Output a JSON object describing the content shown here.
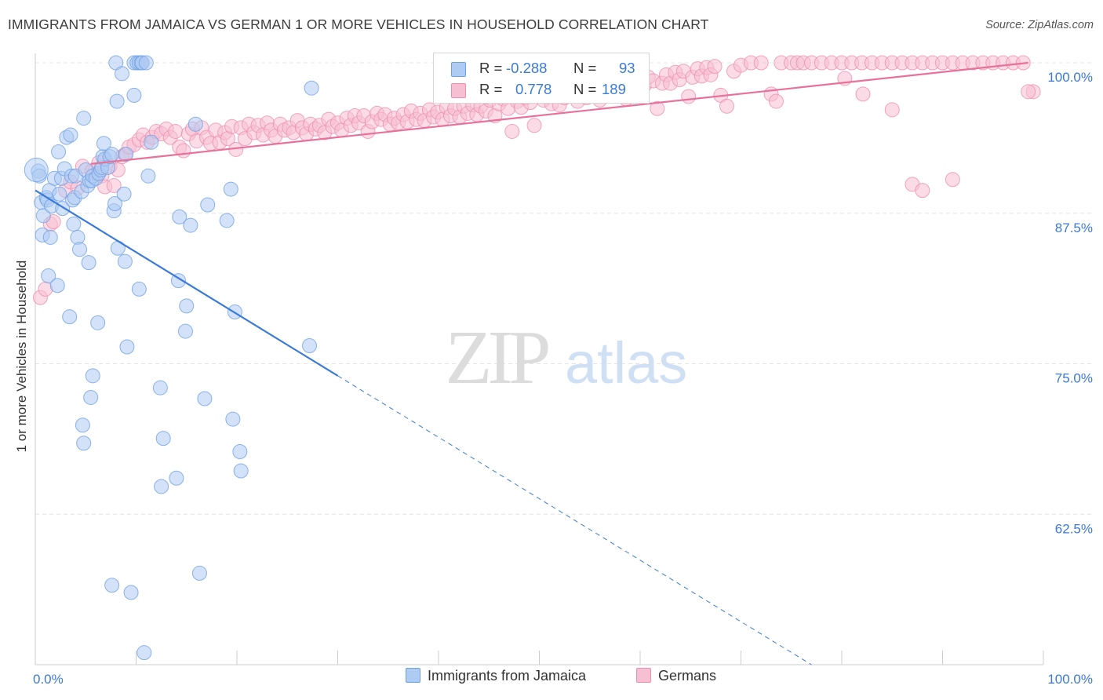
{
  "title": "IMMIGRANTS FROM JAMAICA VS GERMAN 1 OR MORE VEHICLES IN HOUSEHOLD CORRELATION CHART",
  "source": "Source: ZipAtlas.com",
  "watermark": {
    "zip": "ZIP",
    "atlas": "atlas"
  },
  "legend": {
    "rows": [
      {
        "r_label": "R =",
        "r_value": "-0.288",
        "n_label": "N =",
        "n_value": "93",
        "color": "#6fa1e6",
        "fill": "#aecbf3"
      },
      {
        "r_label": "R =",
        "r_value": "0.778",
        "n_label": "N =",
        "n_value": "189",
        "color": "#ee8eaf",
        "fill": "#f7bfd2"
      }
    ]
  },
  "bottom_legend": [
    "Immigrants from Jamaica",
    "Germans"
  ],
  "chart_data": {
    "type": "scatter",
    "title": "IMMIGRANTS FROM JAMAICA VS GERMAN 1 OR MORE VEHICLES IN HOUSEHOLD CORRELATION CHART",
    "xlabel": "",
    "ylabel": "1 or more Vehicles in Household",
    "xlim": [
      0,
      100
    ],
    "ylim": [
      50,
      100
    ],
    "x_tick_labels": [
      "0.0%",
      "100.0%"
    ],
    "y_tick_labels": [
      "100.0%",
      "87.5%",
      "75.0%",
      "62.5%"
    ],
    "y_ticks": [
      100,
      87.5,
      75,
      62.5
    ],
    "grid": true,
    "legend_position": "top-center",
    "series": [
      {
        "name": "Immigrants from Jamaica",
        "color": "#6fa1e6",
        "fill": "#aecbf3",
        "trend": {
          "x": [
            0,
            30
          ],
          "y": [
            89.4,
            74.0
          ],
          "dashed_to": {
            "x": 77,
            "y": 50.0
          }
        },
        "points": [
          [
            0.3,
            91.0
          ],
          [
            0.4,
            90.6
          ],
          [
            0.6,
            88.4
          ],
          [
            0.7,
            85.7
          ],
          [
            0.8,
            87.3
          ],
          [
            1.1,
            88.8
          ],
          [
            1.2,
            88.6
          ],
          [
            1.3,
            82.3
          ],
          [
            1.4,
            89.4
          ],
          [
            1.5,
            85.5
          ],
          [
            1.6,
            88.1
          ],
          [
            1.9,
            90.4
          ],
          [
            2.2,
            81.5
          ],
          [
            2.3,
            92.6
          ],
          [
            2.4,
            89.1
          ],
          [
            2.6,
            90.4
          ],
          [
            2.7,
            87.9
          ],
          [
            2.9,
            91.2
          ],
          [
            3.1,
            93.8
          ],
          [
            3.4,
            78.9
          ],
          [
            3.5,
            94.0
          ],
          [
            3.6,
            90.6
          ],
          [
            3.7,
            88.6
          ],
          [
            3.8,
            86.6
          ],
          [
            3.9,
            88.8
          ],
          [
            4.0,
            90.6
          ],
          [
            4.2,
            85.5
          ],
          [
            4.4,
            84.5
          ],
          [
            4.6,
            89.3
          ],
          [
            4.8,
            95.4
          ],
          [
            4.7,
            69.9
          ],
          [
            4.8,
            68.4
          ],
          [
            5.0,
            91.1
          ],
          [
            5.2,
            89.8
          ],
          [
            5.3,
            83.4
          ],
          [
            5.4,
            90.2
          ],
          [
            5.6,
            90.2
          ],
          [
            5.7,
            90.6
          ],
          [
            5.5,
            72.2
          ],
          [
            5.7,
            74.0
          ],
          [
            6.0,
            90.4
          ],
          [
            6.2,
            78.4
          ],
          [
            6.3,
            90.8
          ],
          [
            6.5,
            91.1
          ],
          [
            6.6,
            91.3
          ],
          [
            6.7,
            92.2
          ],
          [
            6.8,
            93.3
          ],
          [
            6.9,
            92.0
          ],
          [
            7.2,
            91.3
          ],
          [
            7.4,
            92.2
          ],
          [
            7.6,
            92.4
          ],
          [
            7.6,
            56.6
          ],
          [
            7.8,
            87.7
          ],
          [
            7.9,
            88.3
          ],
          [
            8.0,
            100.0
          ],
          [
            8.1,
            96.8
          ],
          [
            8.2,
            84.6
          ],
          [
            8.6,
            99.1
          ],
          [
            8.8,
            89.1
          ],
          [
            8.9,
            83.5
          ],
          [
            9.0,
            92.4
          ],
          [
            9.1,
            76.4
          ],
          [
            9.5,
            56.0
          ],
          [
            9.8,
            100.0
          ],
          [
            9.8,
            97.3
          ],
          [
            10.1,
            100.0
          ],
          [
            10.3,
            100.0
          ],
          [
            10.3,
            81.2
          ],
          [
            10.5,
            100.0
          ],
          [
            10.6,
            100.0
          ],
          [
            10.8,
            51.0
          ],
          [
            11.0,
            100.0
          ],
          [
            11.2,
            90.6
          ],
          [
            11.5,
            93.4
          ],
          [
            12.4,
            73.0
          ],
          [
            12.5,
            64.8
          ],
          [
            12.7,
            68.8
          ],
          [
            14.0,
            65.5
          ],
          [
            14.2,
            81.9
          ],
          [
            14.3,
            87.2
          ],
          [
            14.9,
            77.7
          ],
          [
            15.0,
            79.8
          ],
          [
            15.4,
            86.5
          ],
          [
            15.9,
            94.9
          ],
          [
            16.3,
            57.6
          ],
          [
            16.8,
            72.1
          ],
          [
            17.1,
            88.2
          ],
          [
            19.0,
            86.9
          ],
          [
            19.4,
            89.5
          ],
          [
            19.6,
            70.4
          ],
          [
            19.8,
            79.3
          ],
          [
            20.3,
            67.7
          ],
          [
            20.4,
            66.1
          ],
          [
            27.2,
            76.5
          ],
          [
            27.4,
            97.9
          ]
        ]
      },
      {
        "name": "Germans",
        "color": "#ee8eaf",
        "fill": "#f7bfd2",
        "trend": {
          "x": [
            5.5,
            98.5
          ],
          "y": [
            91.6,
            100.0
          ]
        },
        "points": [
          [
            0.5,
            80.5
          ],
          [
            1.0,
            81.2
          ],
          [
            1.5,
            86.6
          ],
          [
            1.8,
            86.8
          ],
          [
            3.0,
            89.4
          ],
          [
            3.5,
            90.1
          ],
          [
            4.2,
            89.6
          ],
          [
            4.7,
            91.4
          ],
          [
            5.6,
            91.0
          ],
          [
            6.1,
            90.8
          ],
          [
            6.3,
            91.7
          ],
          [
            6.6,
            90.6
          ],
          [
            6.9,
            89.7
          ],
          [
            7.4,
            91.4
          ],
          [
            7.8,
            89.8
          ],
          [
            8.2,
            91.1
          ],
          [
            8.6,
            92.2
          ],
          [
            8.9,
            92.4
          ],
          [
            9.3,
            93.0
          ],
          [
            9.8,
            93.2
          ],
          [
            10.3,
            93.6
          ],
          [
            10.7,
            94.0
          ],
          [
            11.1,
            93.4
          ],
          [
            11.6,
            93.8
          ],
          [
            12.0,
            94.3
          ],
          [
            12.5,
            94.1
          ],
          [
            13.0,
            94.5
          ],
          [
            13.4,
            93.8
          ],
          [
            13.9,
            94.3
          ],
          [
            14.3,
            93.0
          ],
          [
            14.7,
            92.7
          ],
          [
            15.2,
            94.1
          ],
          [
            15.6,
            94.5
          ],
          [
            16.0,
            93.5
          ],
          [
            16.5,
            94.6
          ],
          [
            17.0,
            93.8
          ],
          [
            17.4,
            93.3
          ],
          [
            17.9,
            94.4
          ],
          [
            18.3,
            93.4
          ],
          [
            18.8,
            94.2
          ],
          [
            19.1,
            93.7
          ],
          [
            19.5,
            94.7
          ],
          [
            19.9,
            92.8
          ],
          [
            20.4,
            94.6
          ],
          [
            20.8,
            93.7
          ],
          [
            21.2,
            94.9
          ],
          [
            21.7,
            94.2
          ],
          [
            22.1,
            94.8
          ],
          [
            22.6,
            94.0
          ],
          [
            23.0,
            95.0
          ],
          [
            23.4,
            94.4
          ],
          [
            23.8,
            93.9
          ],
          [
            24.3,
            94.9
          ],
          [
            24.7,
            94.4
          ],
          [
            25.2,
            94.6
          ],
          [
            25.6,
            94.2
          ],
          [
            26.0,
            95.2
          ],
          [
            26.5,
            94.6
          ],
          [
            26.9,
            94.1
          ],
          [
            27.3,
            94.9
          ],
          [
            27.8,
            94.5
          ],
          [
            28.2,
            94.8
          ],
          [
            28.7,
            94.2
          ],
          [
            29.1,
            95.3
          ],
          [
            29.5,
            94.7
          ],
          [
            30.0,
            95.0
          ],
          [
            30.4,
            94.4
          ],
          [
            30.9,
            95.4
          ],
          [
            31.3,
            94.8
          ],
          [
            31.7,
            95.6
          ],
          [
            32.1,
            95.0
          ],
          [
            32.6,
            95.6
          ],
          [
            33.0,
            94.3
          ],
          [
            33.4,
            95.1
          ],
          [
            33.9,
            95.8
          ],
          [
            34.3,
            95.3
          ],
          [
            34.7,
            95.7
          ],
          [
            35.2,
            94.9
          ],
          [
            35.6,
            95.4
          ],
          [
            36.0,
            95.0
          ],
          [
            36.5,
            95.7
          ],
          [
            36.9,
            95.1
          ],
          [
            37.3,
            96.0
          ],
          [
            37.8,
            95.3
          ],
          [
            38.2,
            95.8
          ],
          [
            38.6,
            95.2
          ],
          [
            39.1,
            96.1
          ],
          [
            39.5,
            95.5
          ],
          [
            39.9,
            95.9
          ],
          [
            40.4,
            95.3
          ],
          [
            40.8,
            96.3
          ],
          [
            41.2,
            95.6
          ],
          [
            41.6,
            96.2
          ],
          [
            42.1,
            95.5
          ],
          [
            42.5,
            96.4
          ],
          [
            42.9,
            95.8
          ],
          [
            43.4,
            96.5
          ],
          [
            43.8,
            95.7
          ],
          [
            44.2,
            96.4
          ],
          [
            44.7,
            96.0
          ],
          [
            45.1,
            96.9
          ],
          [
            45.6,
            95.6
          ],
          [
            46.0,
            96.6
          ],
          [
            46.4,
            97.0
          ],
          [
            46.9,
            96.2
          ],
          [
            47.3,
            94.3
          ],
          [
            47.8,
            96.8
          ],
          [
            48.2,
            96.3
          ],
          [
            48.6,
            97.1
          ],
          [
            49.1,
            96.7
          ],
          [
            49.5,
            94.8
          ],
          [
            49.9,
            97.4
          ],
          [
            50.4,
            96.9
          ],
          [
            50.8,
            97.2
          ],
          [
            51.2,
            96.6
          ],
          [
            51.6,
            97.6
          ],
          [
            52.0,
            96.5
          ],
          [
            52.5,
            97.1
          ],
          [
            53.0,
            97.8
          ],
          [
            53.4,
            97.3
          ],
          [
            53.8,
            96.8
          ],
          [
            54.3,
            97.6
          ],
          [
            54.7,
            97.1
          ],
          [
            55.2,
            97.9
          ],
          [
            55.6,
            97.4
          ],
          [
            56.0,
            96.9
          ],
          [
            56.4,
            97.8
          ],
          [
            56.9,
            97.3
          ],
          [
            57.3,
            98.1
          ],
          [
            57.8,
            97.7
          ],
          [
            58.2,
            98.3
          ],
          [
            58.6,
            97.0
          ],
          [
            59.1,
            98.5
          ],
          [
            59.5,
            97.8
          ],
          [
            60.0,
            98.7
          ],
          [
            60.4,
            98.1
          ],
          [
            60.8,
            98.8
          ],
          [
            61.3,
            98.5
          ],
          [
            61.7,
            96.2
          ],
          [
            62.2,
            98.3
          ],
          [
            62.6,
            99.0
          ],
          [
            63.0,
            98.3
          ],
          [
            63.5,
            99.2
          ],
          [
            63.9,
            98.6
          ],
          [
            64.3,
            99.3
          ],
          [
            64.8,
            97.2
          ],
          [
            65.2,
            98.8
          ],
          [
            65.7,
            99.5
          ],
          [
            66.1,
            98.9
          ],
          [
            66.6,
            99.6
          ],
          [
            67.0,
            99.0
          ],
          [
            67.4,
            99.7
          ],
          [
            68.0,
            97.3
          ],
          [
            68.6,
            96.4
          ],
          [
            69.3,
            99.3
          ],
          [
            70.0,
            99.8
          ],
          [
            71.0,
            100.0
          ],
          [
            72.0,
            100.0
          ],
          [
            73.0,
            97.4
          ],
          [
            73.5,
            96.8
          ],
          [
            74.0,
            100.0
          ],
          [
            75.0,
            100.0
          ],
          [
            75.6,
            100.0
          ],
          [
            76.2,
            100.0
          ],
          [
            77.0,
            100.0
          ],
          [
            78.0,
            100.0
          ],
          [
            79.0,
            100.0
          ],
          [
            80.0,
            100.0
          ],
          [
            81.0,
            100.0
          ],
          [
            82.0,
            100.0
          ],
          [
            83.0,
            100.0
          ],
          [
            84.0,
            100.0
          ],
          [
            85.0,
            100.0
          ],
          [
            86.0,
            100.0
          ],
          [
            87.0,
            100.0
          ],
          [
            88.0,
            100.0
          ],
          [
            89.0,
            100.0
          ],
          [
            90.0,
            100.0
          ],
          [
            91.0,
            100.0
          ],
          [
            92.0,
            100.0
          ],
          [
            93.0,
            100.0
          ],
          [
            94.0,
            100.0
          ],
          [
            95.0,
            100.0
          ],
          [
            96.0,
            100.0
          ],
          [
            97.0,
            100.0
          ],
          [
            98.0,
            100.0
          ],
          [
            99.0,
            97.6
          ],
          [
            98.5,
            97.6
          ],
          [
            80.3,
            98.7
          ],
          [
            82.1,
            97.4
          ],
          [
            85.0,
            96.1
          ],
          [
            87.0,
            89.9
          ],
          [
            88.0,
            89.4
          ],
          [
            91.0,
            90.3
          ]
        ]
      }
    ]
  }
}
